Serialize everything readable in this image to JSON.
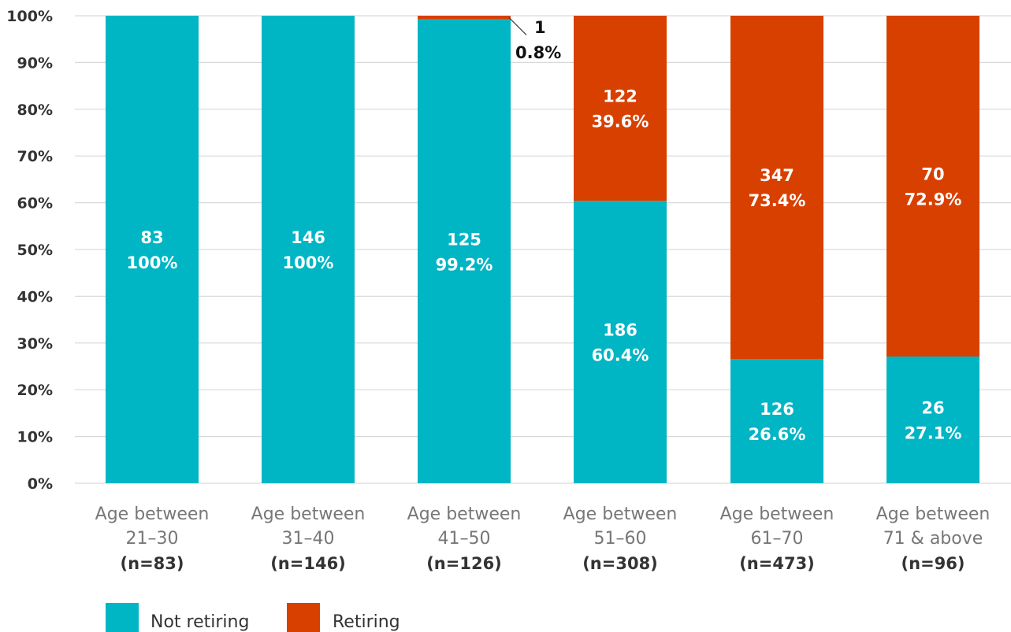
{
  "chart_data": {
    "type": "bar",
    "stacked": true,
    "normalized": true,
    "y_tick_labels": [
      "0%",
      "10%",
      "20%",
      "30%",
      "40%",
      "50%",
      "60%",
      "70%",
      "80%",
      "90%",
      "100%"
    ],
    "ylim": [
      0,
      100
    ],
    "grid": true,
    "legend_position": "bottom-left",
    "categories": [
      {
        "line1": "Age between",
        "line2": "21–30",
        "n_label": "(n=83)"
      },
      {
        "line1": "Age between",
        "line2": "31–40",
        "n_label": "(n=146)"
      },
      {
        "line1": "Age between",
        "line2": "41–50",
        "n_label": "(n=126)"
      },
      {
        "line1": "Age between",
        "line2": "51–60",
        "n_label": "(n=308)"
      },
      {
        "line1": "Age between",
        "line2": "61–70",
        "n_label": "(n=473)"
      },
      {
        "line1": "Age between",
        "line2": "71 & above",
        "n_label": "(n=96)"
      }
    ],
    "series": [
      {
        "name": "Not retiring",
        "color": "#00b5c4",
        "counts": [
          "83",
          "146",
          "125",
          "186",
          "126",
          "26"
        ],
        "percent_labels": [
          "100%",
          "100%",
          "99.2%",
          "60.4%",
          "26.6%",
          "27.1%"
        ],
        "values": [
          100,
          100,
          99.2,
          60.4,
          26.6,
          27.1
        ]
      },
      {
        "name": "Retiring",
        "color": "#d84000",
        "counts": [
          "",
          "",
          "1",
          "122",
          "347",
          "70"
        ],
        "percent_labels": [
          "",
          "",
          "0.8%",
          "39.6%",
          "73.4%",
          "72.9%"
        ],
        "values": [
          0,
          0,
          0.8,
          39.6,
          73.4,
          72.9
        ]
      }
    ]
  }
}
